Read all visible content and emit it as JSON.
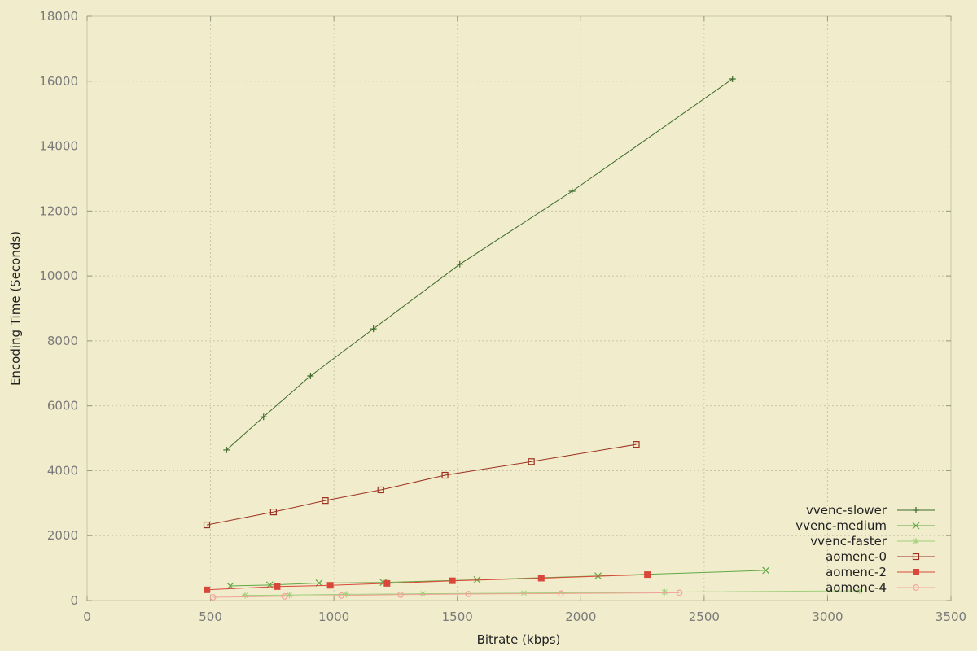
{
  "chart_data": {
    "type": "line",
    "title": "",
    "xlabel": "Bitrate (kbps)",
    "ylabel": "Encoding Time (Seconds)",
    "xlim": [
      0,
      3500
    ],
    "ylim": [
      0,
      18000
    ],
    "x_ticks": [
      0,
      500,
      1000,
      1500,
      2000,
      2500,
      3000,
      3500
    ],
    "y_ticks": [
      0,
      2000,
      4000,
      6000,
      8000,
      10000,
      12000,
      14000,
      16000,
      18000
    ],
    "grid": true,
    "legend_position": "bottom-right",
    "series": [
      {
        "name": "vvenc-slower",
        "color": "#3d6b2a",
        "marker": "plus",
        "points": [
          [
            565,
            4640
          ],
          [
            715,
            5660
          ],
          [
            905,
            6920
          ],
          [
            1160,
            8370
          ],
          [
            1510,
            10360
          ],
          [
            1965,
            12610
          ],
          [
            2615,
            16070
          ]
        ]
      },
      {
        "name": "vvenc-medium",
        "color": "#5fa843",
        "marker": "cross",
        "points": [
          [
            580,
            450
          ],
          [
            740,
            480
          ],
          [
            940,
            540
          ],
          [
            1200,
            560
          ],
          [
            1580,
            640
          ],
          [
            2070,
            760
          ],
          [
            2750,
            930
          ]
        ]
      },
      {
        "name": "vvenc-faster",
        "color": "#9fd07a",
        "marker": "star",
        "points": [
          [
            640,
            160
          ],
          [
            820,
            170
          ],
          [
            1050,
            190
          ],
          [
            1360,
            210
          ],
          [
            1770,
            230
          ],
          [
            2340,
            260
          ],
          [
            3130,
            300
          ]
        ]
      },
      {
        "name": "aomenc-0",
        "color": "#9b2f1f",
        "marker": "open-square",
        "points": [
          [
            485,
            2330
          ],
          [
            755,
            2730
          ],
          [
            965,
            3080
          ],
          [
            1190,
            3410
          ],
          [
            1450,
            3860
          ],
          [
            1800,
            4280
          ],
          [
            2225,
            4810
          ]
        ]
      },
      {
        "name": "aomenc-2",
        "color": "#d9473a",
        "marker": "filled-square",
        "points": [
          [
            485,
            330
          ],
          [
            770,
            430
          ],
          [
            985,
            470
          ],
          [
            1215,
            530
          ],
          [
            1480,
            610
          ],
          [
            1840,
            690
          ],
          [
            2270,
            800
          ]
        ]
      },
      {
        "name": "aomenc-4",
        "color": "#f2a29a",
        "marker": "open-circle",
        "points": [
          [
            510,
            100
          ],
          [
            800,
            130
          ],
          [
            1030,
            155
          ],
          [
            1270,
            180
          ],
          [
            1545,
            200
          ],
          [
            1920,
            215
          ],
          [
            2400,
            240
          ]
        ]
      }
    ]
  }
}
